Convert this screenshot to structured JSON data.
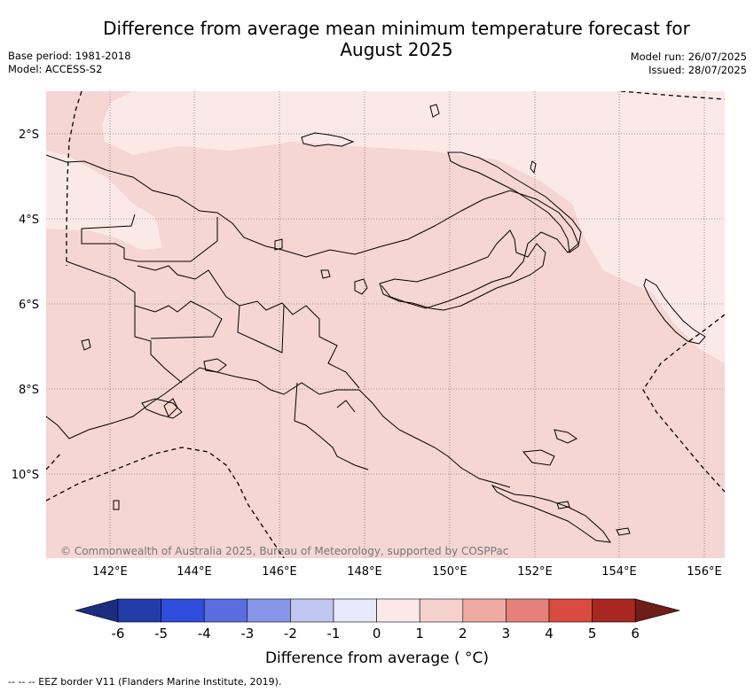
{
  "header": {
    "title_line1": "Difference from average mean minimum temperature forecast for",
    "title_line2": "August 2025",
    "base_period": "Base period: 1981-2018",
    "model": "Model: ACCESS-S2",
    "model_run": "Model run: 26/07/2025",
    "issued": "Issued: 28/07/2025"
  },
  "map": {
    "lat_labels": [
      "2°S",
      "4°S",
      "6°S",
      "8°S",
      "10°S"
    ],
    "lon_labels": [
      "142°E",
      "144°E",
      "146°E",
      "148°E",
      "150°E",
      "152°E",
      "154°E",
      "156°E"
    ],
    "copyright": "© Commonwealth of Australia 2025, Bureau of Meteorology, supported by COSPPac",
    "ocean_color": "#f5d6d3",
    "light_color": "#fbe9e7"
  },
  "colorbar": {
    "ticks": [
      "-6",
      "-5",
      "-4",
      "-3",
      "-2",
      "-1",
      "0",
      "1",
      "2",
      "3",
      "4",
      "5",
      "6"
    ],
    "colors": [
      "#233da8",
      "#2f4ddc",
      "#5a6de0",
      "#8796e8",
      "#c0c6f2",
      "#e6e9f9",
      "#fbe9e7",
      "#f5d1ce",
      "#efaaa4",
      "#e6807a",
      "#d94b40",
      "#a82821"
    ],
    "under_color": "#1a2d80",
    "over_color": "#701c17",
    "label": "Difference from average ( °C)"
  },
  "footer": {
    "eez_legend": "--  --  -- EEZ border V11 (Flanders Marine Institute, 2019)."
  }
}
